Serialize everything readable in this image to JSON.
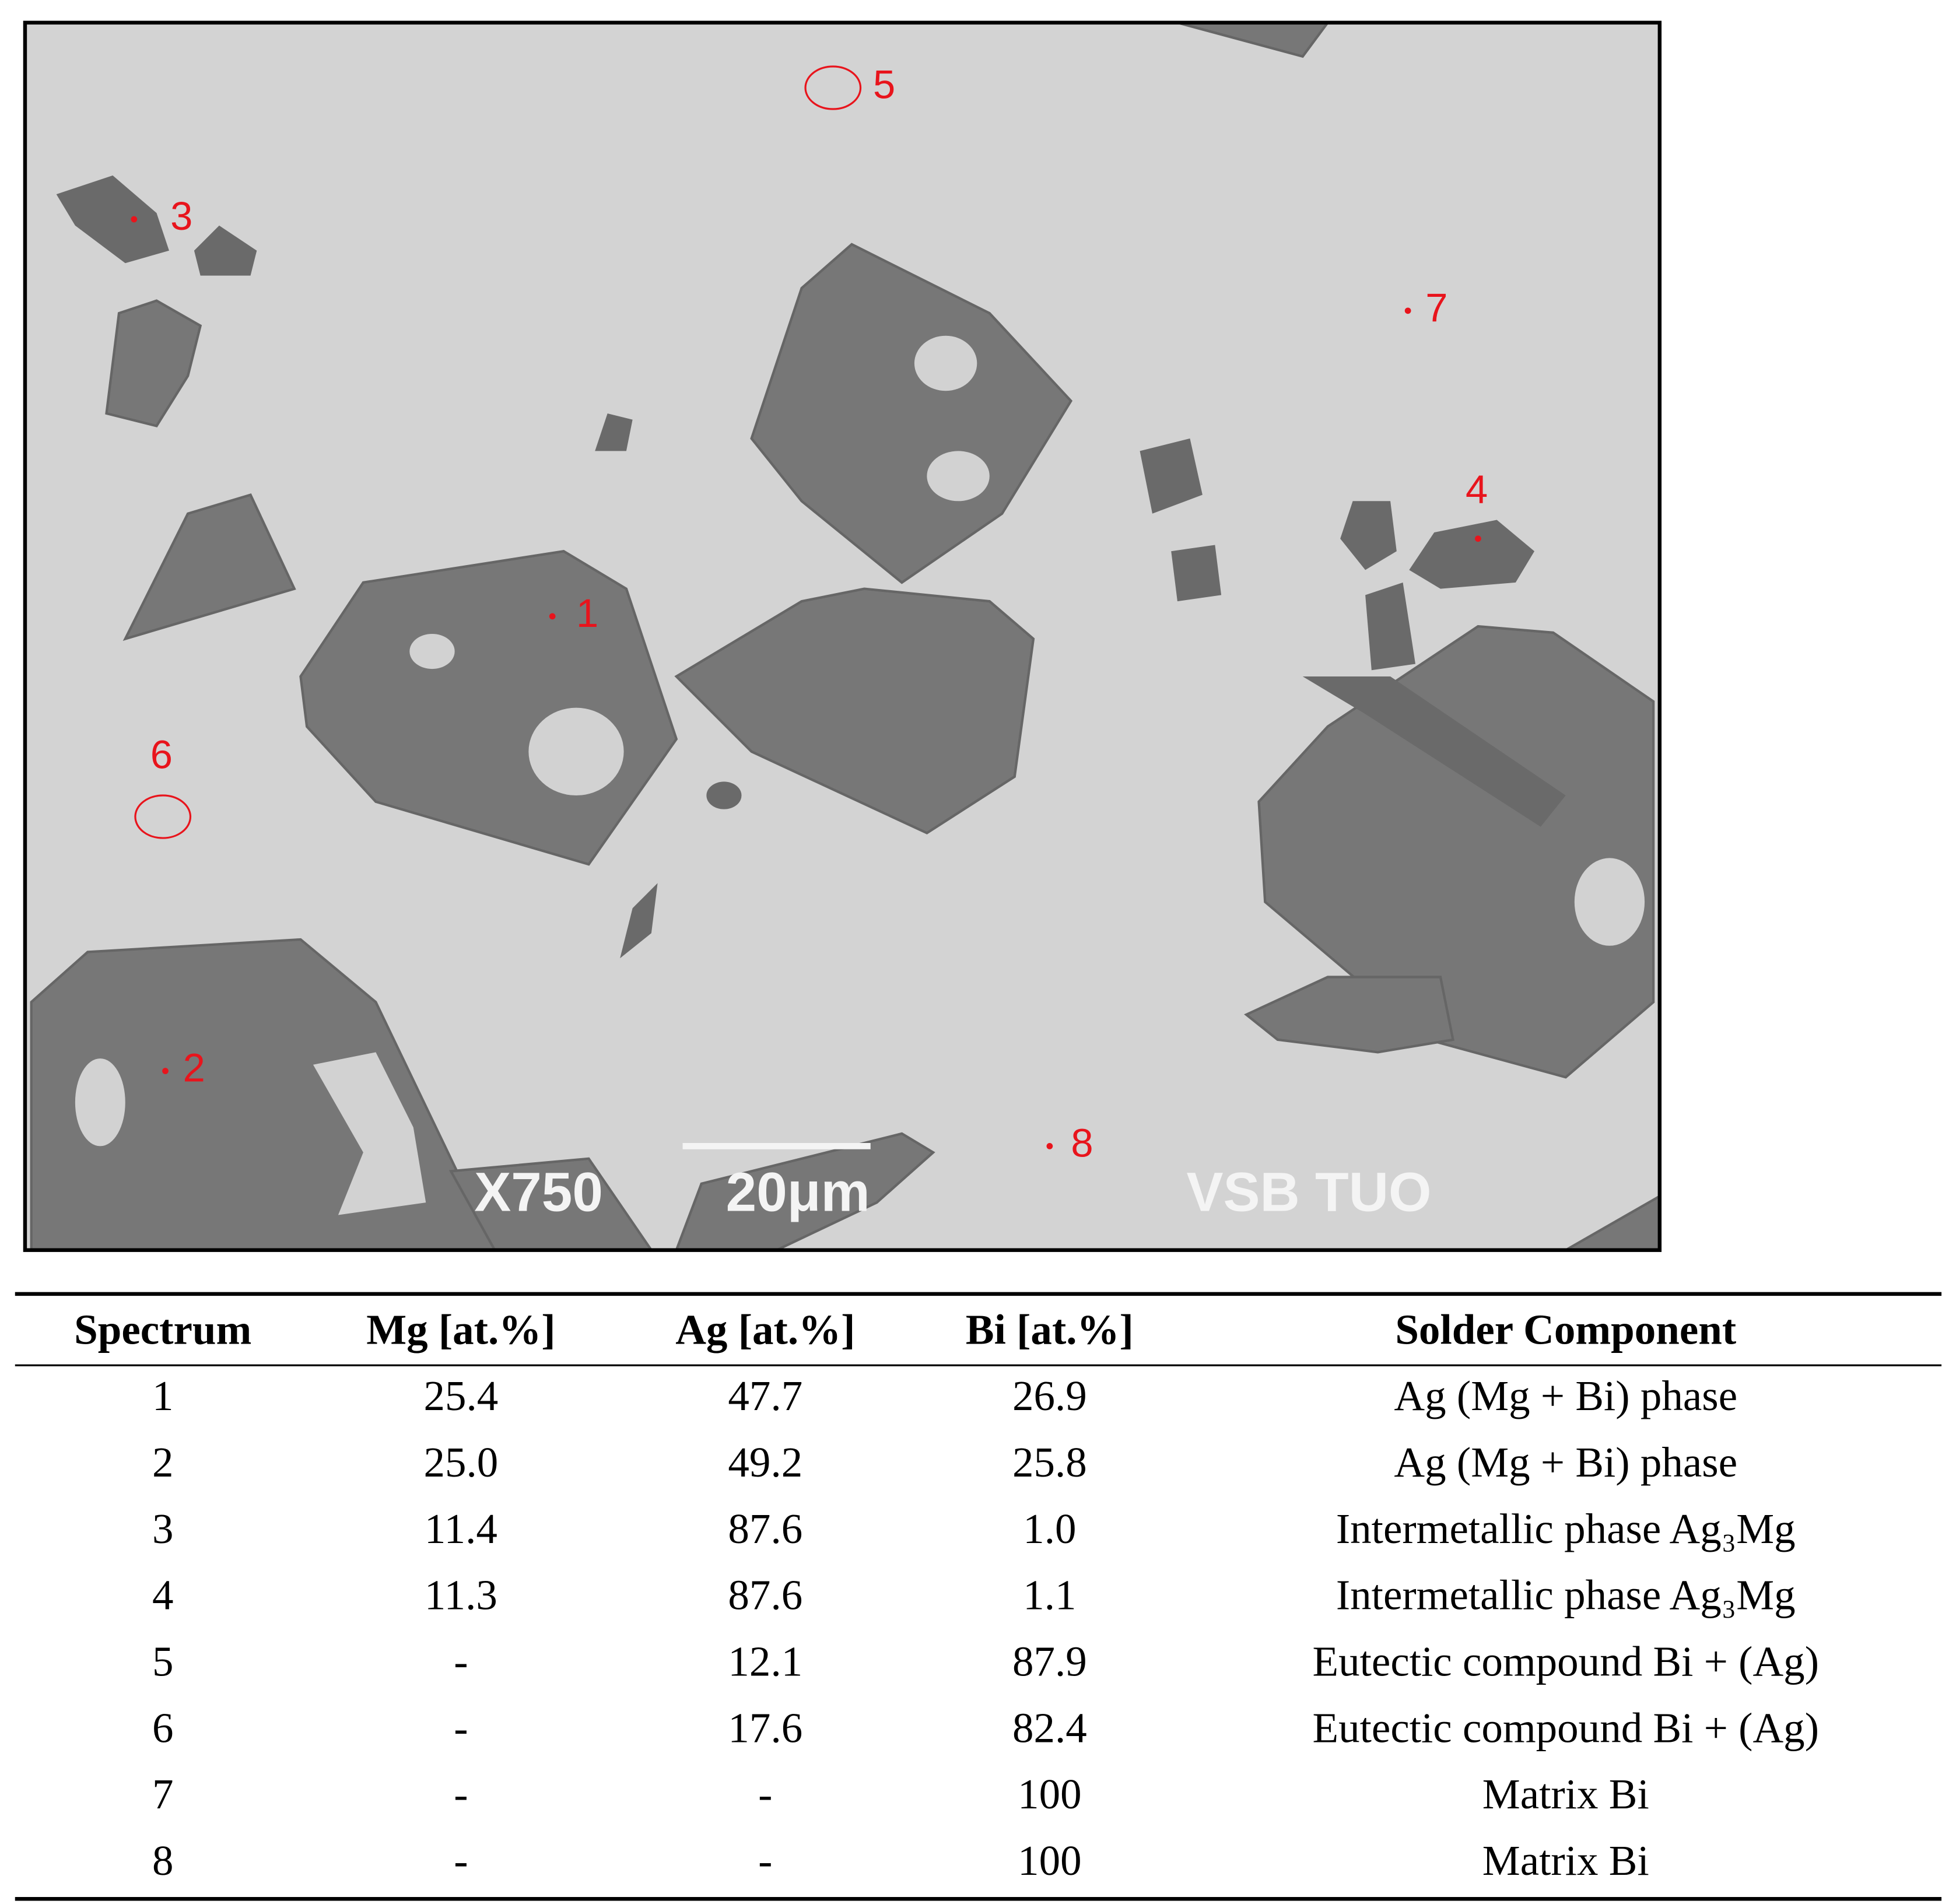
{
  "micrograph": {
    "markers": [
      {
        "label": "1"
      },
      {
        "label": "2"
      },
      {
        "label": "3"
      },
      {
        "label": "4"
      },
      {
        "label": "5"
      },
      {
        "label": "6"
      },
      {
        "label": "7"
      },
      {
        "label": "8"
      }
    ],
    "magnification": "X750",
    "scale_bar": "20μm",
    "lab": "VSB TUO"
  },
  "table": {
    "header": [
      "Spectrum",
      "Mg [at.%]",
      "Ag [at.%]",
      "Bi [at.%]",
      "Solder Component"
    ],
    "rows": [
      [
        "1",
        "25.4",
        "47.7",
        "26.9",
        "Ag (Mg + Bi) phase"
      ],
      [
        "2",
        "25.0",
        "49.2",
        "25.8",
        "Ag (Mg + Bi) phase"
      ],
      [
        "3",
        "11.4",
        "87.6",
        "1.0",
        "Intermetallic phase Ag₃Mg"
      ],
      [
        "4",
        "11.3",
        "87.6",
        "1.1",
        "Intermetallic phase Ag₃Mg"
      ],
      [
        "5",
        "-",
        "12.1",
        "87.9",
        "Eutectic compound Bi + (Ag)"
      ],
      [
        "6",
        "-",
        "17.6",
        "82.4",
        "Eutectic compound Bi + (Ag)"
      ],
      [
        "7",
        "-",
        "-",
        "100",
        "Matrix Bi"
      ],
      [
        "8",
        "-",
        "-",
        "100",
        "Matrix Bi"
      ]
    ]
  }
}
